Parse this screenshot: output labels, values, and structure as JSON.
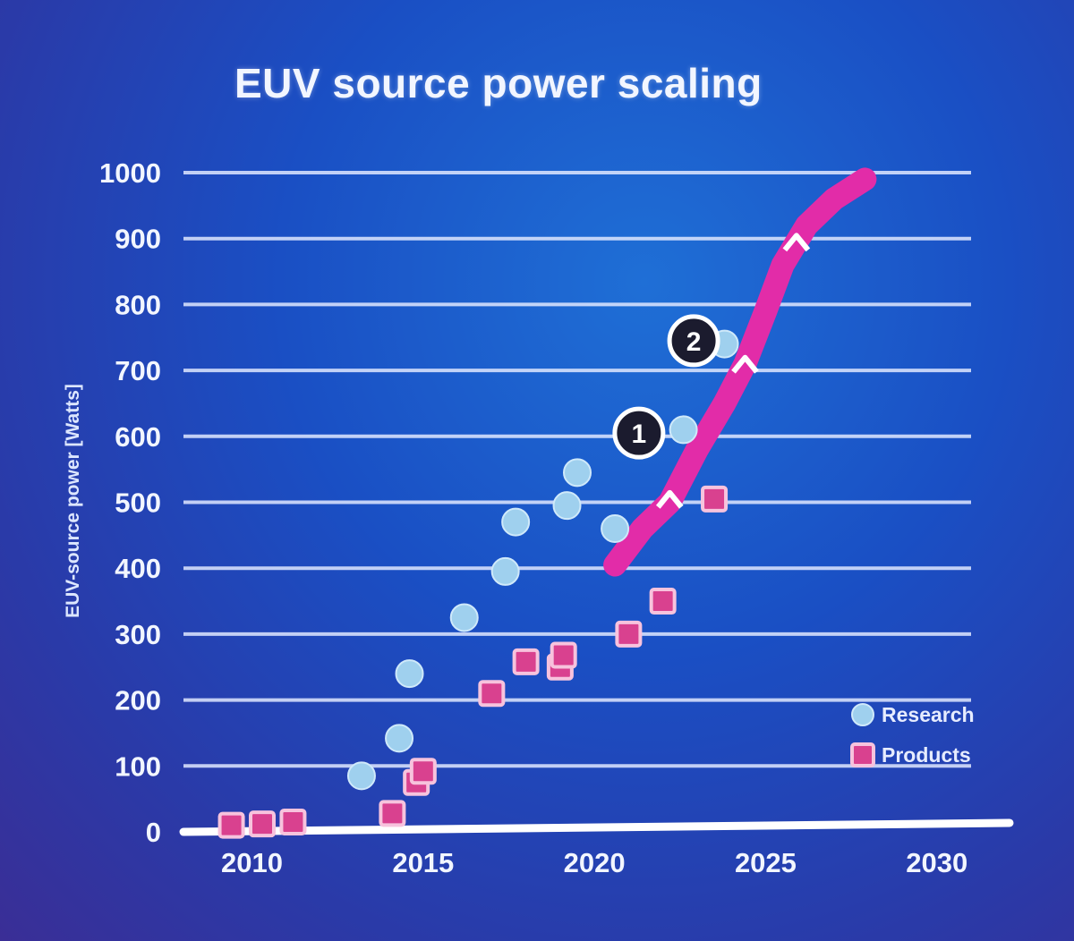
{
  "chart_data": {
    "type": "scatter",
    "title": "EUV source power scaling",
    "ylabel": "EUV-source power [Watts]",
    "xlabel": "",
    "xlim": [
      2008,
      2031
    ],
    "ylim": [
      0,
      1000
    ],
    "x_ticks": [
      "2010",
      "2015",
      "2020",
      "2025",
      "2030"
    ],
    "y_ticks": [
      "0",
      "100",
      "200",
      "300",
      "400",
      "500",
      "600",
      "700",
      "800",
      "900",
      "1000"
    ],
    "grid": true,
    "legend_position": "bottom-right",
    "series": [
      {
        "name": "Research",
        "marker": "circle",
        "color": "#9fd0ee",
        "points": [
          {
            "x": 2013.2,
            "y": 85
          },
          {
            "x": 2014.3,
            "y": 142
          },
          {
            "x": 2014.6,
            "y": 240
          },
          {
            "x": 2016.2,
            "y": 325
          },
          {
            "x": 2017.4,
            "y": 395
          },
          {
            "x": 2017.7,
            "y": 470
          },
          {
            "x": 2019.2,
            "y": 495
          },
          {
            "x": 2019.5,
            "y": 545
          },
          {
            "x": 2020.6,
            "y": 460
          },
          {
            "x": 2022.6,
            "y": 610
          },
          {
            "x": 2023.8,
            "y": 740
          }
        ]
      },
      {
        "name": "Products",
        "marker": "square",
        "color": "#d9418f",
        "points": [
          {
            "x": 2009.4,
            "y": 10
          },
          {
            "x": 2010.3,
            "y": 12
          },
          {
            "x": 2011.2,
            "y": 15
          },
          {
            "x": 2014.1,
            "y": 28
          },
          {
            "x": 2014.8,
            "y": 75
          },
          {
            "x": 2015.0,
            "y": 92
          },
          {
            "x": 2017.0,
            "y": 210
          },
          {
            "x": 2018.0,
            "y": 258
          },
          {
            "x": 2019.0,
            "y": 250
          },
          {
            "x": 2019.1,
            "y": 268
          },
          {
            "x": 2021.0,
            "y": 300
          },
          {
            "x": 2022.0,
            "y": 350
          },
          {
            "x": 2023.5,
            "y": 505
          }
        ]
      }
    ],
    "trend_band": {
      "color": "#e22ca8",
      "points": [
        {
          "x": 2020.6,
          "y": 405
        },
        {
          "x": 2021.4,
          "y": 460
        },
        {
          "x": 2022.2,
          "y": 500
        },
        {
          "x": 2023.0,
          "y": 580
        },
        {
          "x": 2023.8,
          "y": 650
        },
        {
          "x": 2024.4,
          "y": 710
        },
        {
          "x": 2025.0,
          "y": 790
        },
        {
          "x": 2025.5,
          "y": 860
        },
        {
          "x": 2026.2,
          "y": 920
        },
        {
          "x": 2027.0,
          "y": 960
        },
        {
          "x": 2027.9,
          "y": 990
        }
      ],
      "chevrons": [
        {
          "x": 2022.2,
          "y": 505
        },
        {
          "x": 2024.4,
          "y": 710
        },
        {
          "x": 2025.9,
          "y": 895
        }
      ]
    },
    "annotations": [
      {
        "label": "1",
        "x": 2021.3,
        "y": 605
      },
      {
        "label": "2",
        "x": 2022.9,
        "y": 745
      }
    ],
    "legend": [
      {
        "label": "Research",
        "marker": "circle",
        "color": "#9fd0ee"
      },
      {
        "label": "Products",
        "marker": "square",
        "color": "#d9418f"
      }
    ]
  }
}
